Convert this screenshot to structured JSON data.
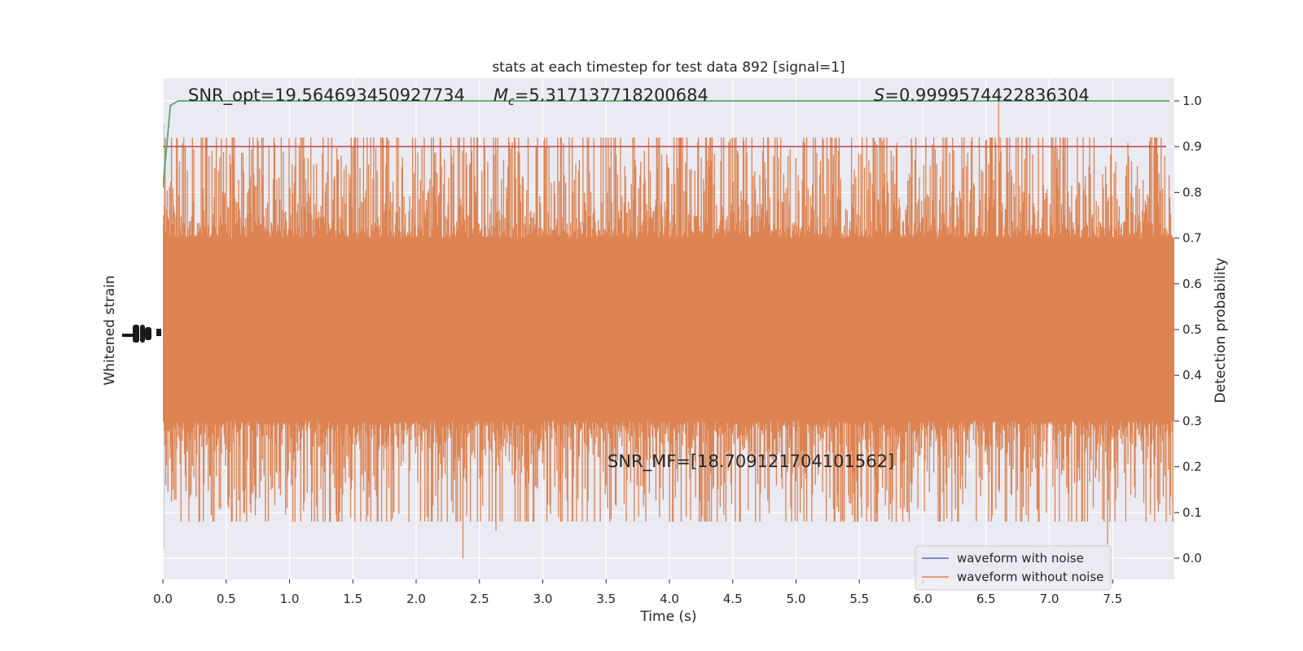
{
  "chart_data": {
    "type": "line",
    "title": "stats at each timestep for test data 892 [signal=1]",
    "xlabel": "Time (s)",
    "ylabel_left": "Whitened strain",
    "ylabel_right": "Detection probability",
    "xlim": [
      0.0,
      8.0
    ],
    "ylim_right": [
      -0.05,
      1.05
    ],
    "grid": true,
    "legend_position": "lower-right",
    "x_ticks": [
      0.0,
      0.5,
      1.0,
      1.5,
      2.0,
      2.5,
      3.0,
      3.5,
      4.0,
      4.5,
      5.0,
      5.5,
      6.0,
      6.5,
      7.0,
      7.5
    ],
    "x_tick_labels": [
      "0.0",
      "0.5",
      "1.0",
      "1.5",
      "2.0",
      "2.5",
      "3.0",
      "3.5",
      "4.0",
      "4.5",
      "5.0",
      "5.5",
      "6.0",
      "6.5",
      "7.0",
      "7.5"
    ],
    "y_right_ticks": [
      0.0,
      0.1,
      0.2,
      0.3,
      0.4,
      0.5,
      0.6,
      0.7,
      0.8,
      0.9,
      1.0
    ],
    "y_right_tick_labels": [
      "0.0",
      "0.1",
      "0.2",
      "0.3",
      "0.4",
      "0.5",
      "0.6",
      "0.7",
      "0.8",
      "0.9",
      "1.0"
    ],
    "annotations": {
      "snr_opt": "SNR_opt=19.564693450927734",
      "mc_symbol": "M",
      "mc_subscript": "c",
      "mc_value": "=5.317137718200684",
      "s_symbol": "S",
      "s_value": "=0.9999574422836304",
      "snr_mf": "SNR_MF=[18.709121704101562]"
    },
    "series": [
      {
        "name": "waveform with noise",
        "color": "#4c72b0",
        "note_visible": "hidden behind the orange trace"
      },
      {
        "name": "waveform without noise",
        "color": "#dd8452",
        "band_center": 0.5,
        "band_core_halfwidth": 0.2,
        "peak_max": 1.0,
        "peak_min": 0.0
      },
      {
        "name": "detection probability",
        "color": "#55a868",
        "x": [
          0.0,
          0.06,
          0.12,
          7.95
        ],
        "y": [
          0.81,
          0.99,
          1.0,
          1.0
        ]
      },
      {
        "name": "threshold",
        "color": "#c44e52",
        "y": 0.9
      }
    ],
    "legend": [
      "waveform with noise",
      "waveform without noise"
    ]
  }
}
